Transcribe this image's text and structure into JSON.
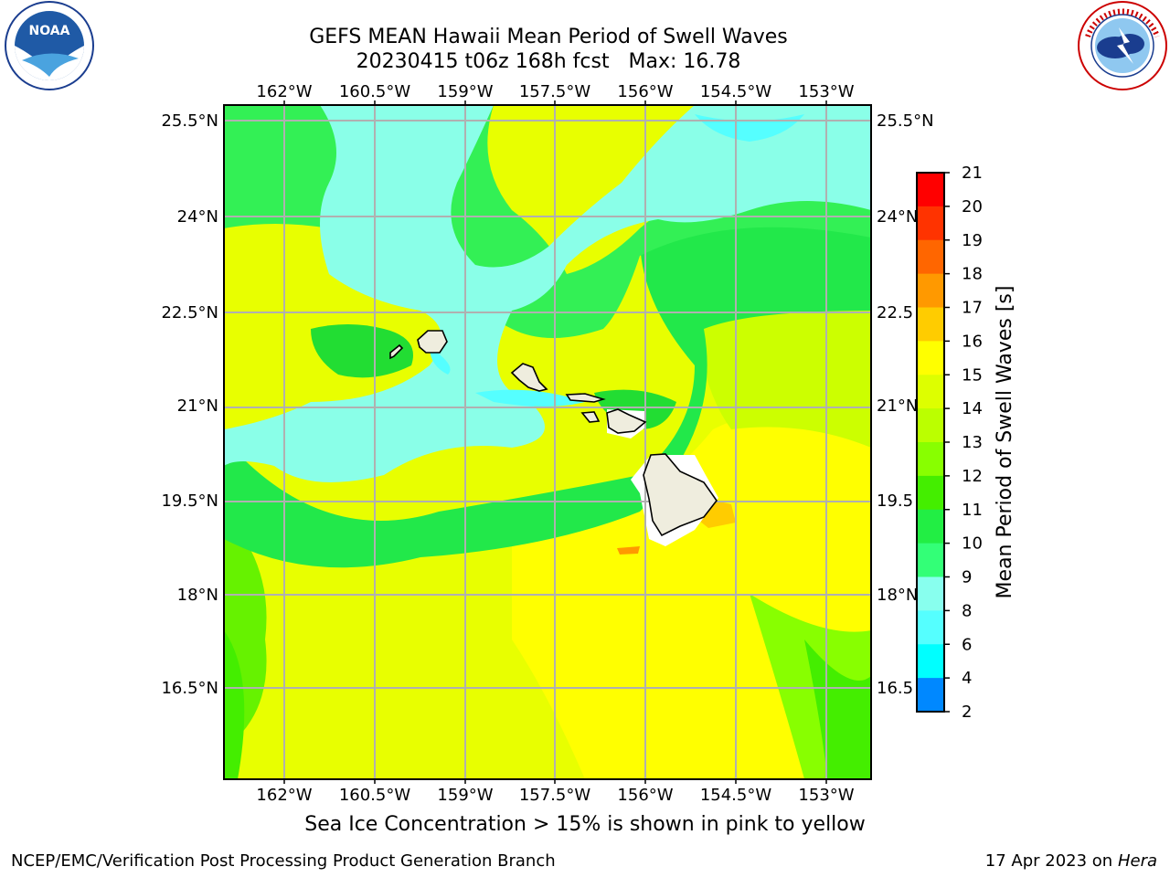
{
  "header": {
    "title": "GEFS MEAN Hawaii Mean Period of Swell Waves",
    "run_line": "20230415 t06z 168h fcst   Max: 16.78"
  },
  "map": {
    "lon_ticks": [
      "162°W",
      "160.5°W",
      "159°W",
      "157.5°W",
      "156°W",
      "154.5°W",
      "153°W"
    ],
    "lat_ticks_left": [
      "25.5°N",
      "24°N",
      "22.5°N",
      "21°N",
      "19.5°N",
      "18°N",
      "16.5°N"
    ],
    "lat_ticks_right": [
      "25.5°N",
      "24°N",
      "22.5",
      "21°N",
      "19.5",
      "18°N",
      "16.5"
    ],
    "land_color": "#efedde",
    "grid_color": "#b0b0b0"
  },
  "colorbar": {
    "label": "Mean Period of Swell Waves [s]",
    "ticks": [
      "21",
      "20",
      "19",
      "18",
      "17",
      "16",
      "15",
      "14",
      "13",
      "12",
      "11",
      "10",
      "9",
      "8",
      "6",
      "4",
      "2"
    ],
    "colors": [
      "#ff0000",
      "#ff3300",
      "#ff6600",
      "#ff9900",
      "#ffcc00",
      "#ffff00",
      "#ddff00",
      "#bbff00",
      "#88ff00",
      "#44ee00",
      "#22ee44",
      "#33ff77",
      "#88ffee",
      "#55ffff",
      "#00ffff",
      "#0088ff",
      "#0000ff"
    ]
  },
  "footer": {
    "caption": "Sea Ice Concentration > 15% is shown in pink to yellow",
    "credit": "NCEP/EMC/Verification Post Processing Product Generation Branch",
    "date": "17 Apr 2023 on",
    "host": "Hera"
  },
  "logos": {
    "noaa": "NOAA",
    "nws": "NATIONAL WEATHER SERVICE"
  }
}
